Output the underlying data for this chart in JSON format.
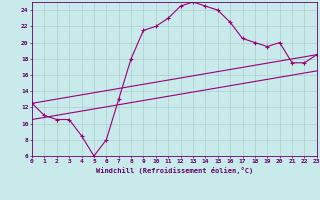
{
  "xlabel": "Windchill (Refroidissement éolien,°C)",
  "background_color": "#c8eaea",
  "grid_color": "#b0cccc",
  "line_color": "#990077",
  "xlim": [
    0,
    23
  ],
  "ylim": [
    6,
    25
  ],
  "xticks": [
    0,
    1,
    2,
    3,
    4,
    5,
    6,
    7,
    8,
    9,
    10,
    11,
    12,
    13,
    14,
    15,
    16,
    17,
    18,
    19,
    20,
    21,
    22,
    23
  ],
  "yticks": [
    6,
    8,
    10,
    12,
    14,
    16,
    18,
    20,
    22,
    24
  ],
  "curve_x": [
    0,
    1,
    2,
    3,
    4,
    5,
    6,
    7,
    8,
    9,
    10,
    11,
    12,
    13,
    14,
    15,
    16,
    17,
    18,
    19,
    20,
    21,
    22,
    23
  ],
  "curve_y": [
    12.5,
    11.0,
    10.5,
    10.5,
    8.5,
    6.0,
    8.0,
    13.0,
    18.0,
    21.5,
    22.0,
    23.0,
    24.5,
    25.0,
    24.5,
    24.0,
    22.5,
    20.5,
    20.0,
    19.5,
    20.0,
    17.5,
    17.5,
    18.5
  ],
  "line3_x": [
    0,
    23
  ],
  "line3_y": [
    10.5,
    16.5
  ],
  "line4_x": [
    0,
    23
  ],
  "line4_y": [
    12.5,
    18.5
  ]
}
